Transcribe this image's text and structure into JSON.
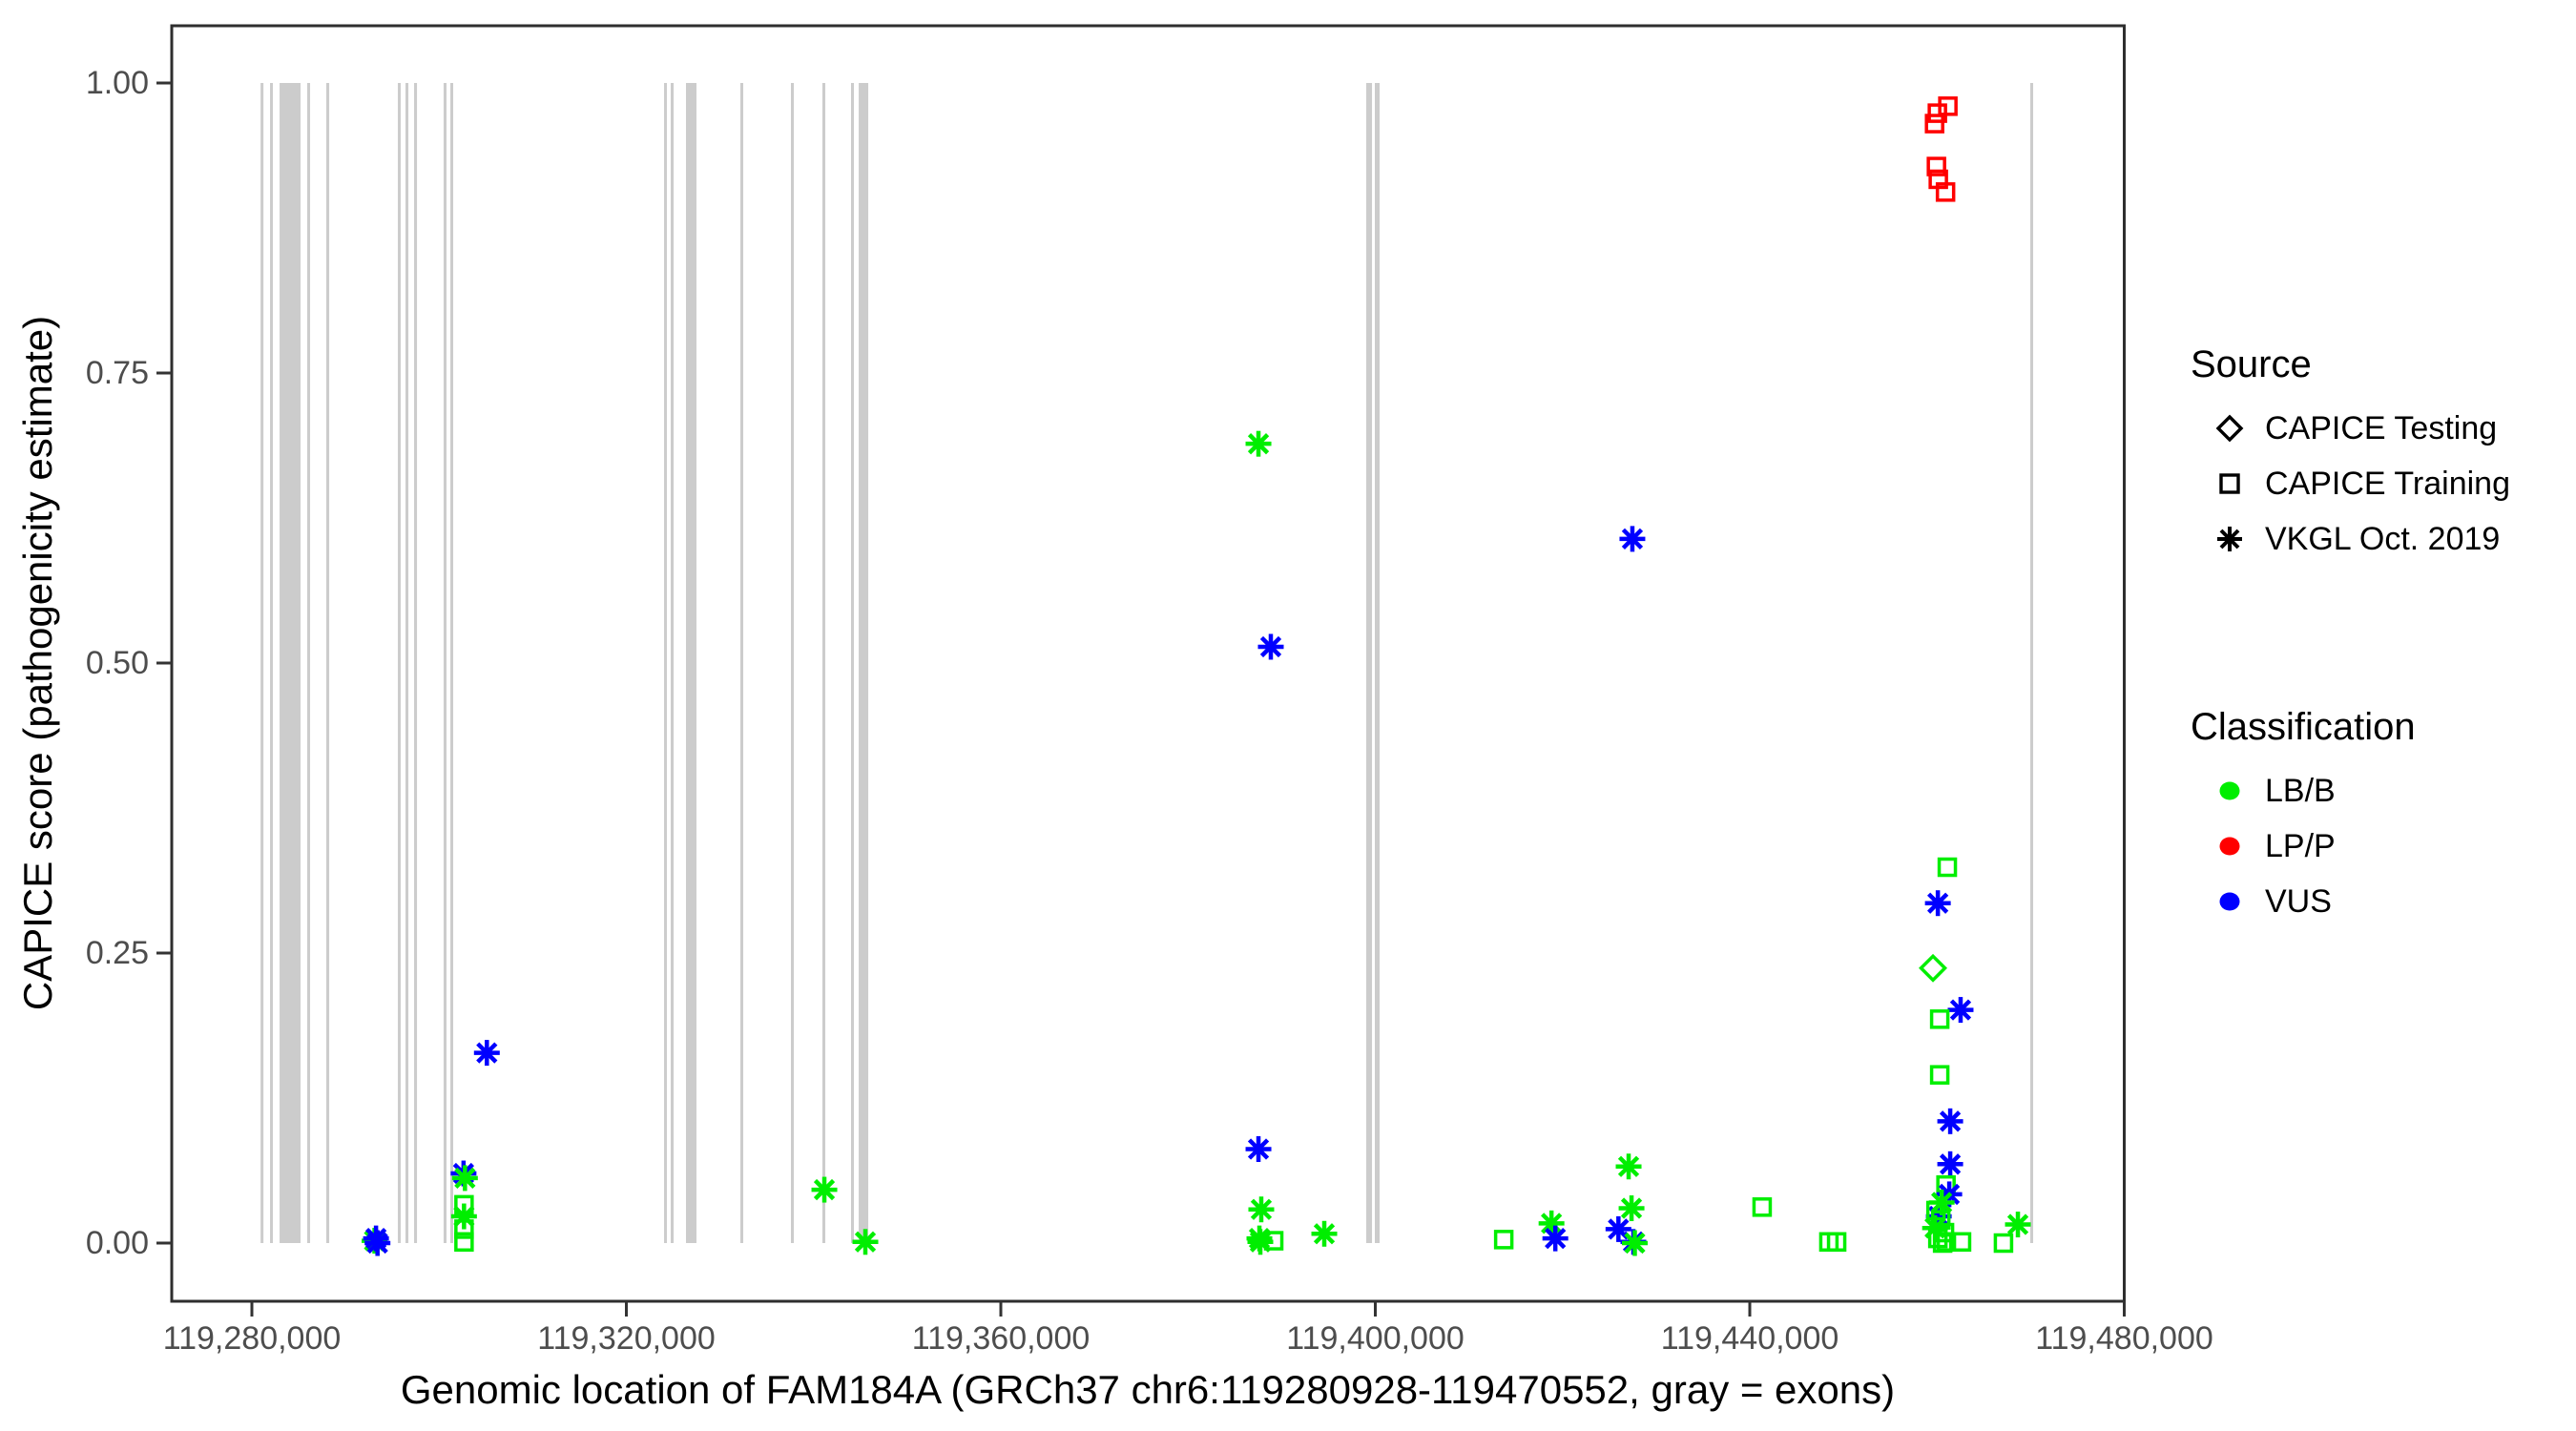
{
  "chart_data": {
    "type": "scatter",
    "title": "",
    "xlabel": "Genomic location of FAM184A (GRCh37 chr6:119280928-119470552, gray = exons)",
    "ylabel": "CAPICE score (pathogenicity estimate)",
    "grid": false,
    "xlim": [
      119271440,
      119480040
    ],
    "ylim": [
      -0.05,
      1.05
    ],
    "x_ticks": [
      {
        "bp": 119280000,
        "label": "119,280,000"
      },
      {
        "bp": 119320000,
        "label": "119,320,000"
      },
      {
        "bp": 119360000,
        "label": "119,360,000"
      },
      {
        "bp": 119400000,
        "label": "119,400,000"
      },
      {
        "bp": 119440000,
        "label": "119,440,000"
      },
      {
        "bp": 119480000,
        "label": "119,480,000"
      }
    ],
    "y_ticks": [
      {
        "v": 0.0,
        "label": "0.00"
      },
      {
        "v": 0.25,
        "label": "0.25"
      },
      {
        "v": 0.5,
        "label": "0.50"
      },
      {
        "v": 0.75,
        "label": "0.75"
      },
      {
        "v": 1.0,
        "label": "1.00"
      }
    ],
    "colors": {
      "LB/B": "#00ee00",
      "LP/P": "#ff0000",
      "VUS": "#0000ff",
      "exon": "#cccccc",
      "tick_text": "#4d4d4d",
      "axis": "#333333",
      "border": "#2e2e2e"
    },
    "legend": {
      "source": {
        "title": "Source",
        "items": [
          {
            "label": "CAPICE Testing",
            "shape": "diamond"
          },
          {
            "label": "CAPICE Training",
            "shape": "square"
          },
          {
            "label": "VKGL Oct. 2019",
            "shape": "asterisk"
          }
        ]
      },
      "classification": {
        "title": "Classification",
        "items": [
          {
            "label": "LB/B",
            "color": "#00ee00"
          },
          {
            "label": "LP/P",
            "color": "#ff0000"
          },
          {
            "label": "VUS",
            "color": "#0000ff"
          }
        ]
      }
    },
    "exons_bp": [
      [
        119280930,
        119281230
      ],
      [
        119281940,
        119282240
      ],
      [
        119282960,
        119285200
      ],
      [
        119285910,
        119286220
      ],
      [
        119287950,
        119288260
      ],
      [
        119295590,
        119295900
      ],
      [
        119296410,
        119296710
      ],
      [
        119297330,
        119297630
      ],
      [
        119300480,
        119300790
      ],
      [
        119301200,
        119301500
      ],
      [
        119324030,
        119324330
      ],
      [
        119324740,
        119325050
      ],
      [
        119326370,
        119327490
      ],
      [
        119332180,
        119332480
      ],
      [
        119337580,
        119337890
      ],
      [
        119340940,
        119341250
      ],
      [
        119344000,
        119344310
      ],
      [
        119344820,
        119345840
      ],
      [
        119399030,
        119399650
      ],
      [
        119399950,
        119400460
      ],
      [
        119469960,
        119470270
      ]
    ],
    "points": [
      {
        "bp": 119293100,
        "score": 0.002,
        "shape": "asterisk",
        "cls": "LB/B"
      },
      {
        "bp": 119293260,
        "score": 0.004,
        "shape": "asterisk",
        "cls": "VUS"
      },
      {
        "bp": 119293420,
        "score": 0.0,
        "shape": "asterisk",
        "cls": "VUS"
      },
      {
        "bp": 119302610,
        "score": 0.06,
        "shape": "asterisk",
        "cls": "VUS"
      },
      {
        "bp": 119302760,
        "score": 0.056,
        "shape": "asterisk",
        "cls": "LB/B"
      },
      {
        "bp": 119302660,
        "score": 0.033,
        "shape": "square",
        "cls": "LB/B"
      },
      {
        "bp": 119302660,
        "score": 0.023,
        "shape": "asterisk",
        "cls": "LB/B"
      },
      {
        "bp": 119302660,
        "score": 0.012,
        "shape": "square",
        "cls": "LB/B"
      },
      {
        "bp": 119302660,
        "score": 0.001,
        "shape": "square",
        "cls": "LB/B"
      },
      {
        "bp": 119305100,
        "score": 0.164,
        "shape": "asterisk",
        "cls": "VUS"
      },
      {
        "bp": 119341150,
        "score": 0.046,
        "shape": "asterisk",
        "cls": "LB/B"
      },
      {
        "bp": 119345530,
        "score": 0.001,
        "shape": "asterisk",
        "cls": "LB/B"
      },
      {
        "bp": 119387520,
        "score": 0.689,
        "shape": "asterisk",
        "cls": "LB/B"
      },
      {
        "bp": 119388840,
        "score": 0.514,
        "shape": "asterisk",
        "cls": "VUS"
      },
      {
        "bp": 119387520,
        "score": 0.081,
        "shape": "asterisk",
        "cls": "VUS"
      },
      {
        "bp": 119387820,
        "score": 0.029,
        "shape": "asterisk",
        "cls": "LB/B"
      },
      {
        "bp": 119387620,
        "score": 0.004,
        "shape": "asterisk",
        "cls": "LB/B"
      },
      {
        "bp": 119387720,
        "score": 0.001,
        "shape": "asterisk",
        "cls": "LB/B"
      },
      {
        "bp": 119389150,
        "score": 0.002,
        "shape": "square",
        "cls": "LB/B"
      },
      {
        "bp": 119394550,
        "score": 0.008,
        "shape": "asterisk",
        "cls": "LB/B"
      },
      {
        "bp": 119413720,
        "score": 0.003,
        "shape": "square",
        "cls": "LB/B"
      },
      {
        "bp": 119418820,
        "score": 0.017,
        "shape": "asterisk",
        "cls": "LB/B"
      },
      {
        "bp": 119419230,
        "score": 0.004,
        "shape": "asterisk",
        "cls": "VUS"
      },
      {
        "bp": 119427460,
        "score": 0.607,
        "shape": "asterisk",
        "cls": "VUS"
      },
      {
        "bp": 119427060,
        "score": 0.066,
        "shape": "asterisk",
        "cls": "LB/B"
      },
      {
        "bp": 119427370,
        "score": 0.03,
        "shape": "asterisk",
        "cls": "LB/B"
      },
      {
        "bp": 119425970,
        "score": 0.012,
        "shape": "asterisk",
        "cls": "VUS"
      },
      {
        "bp": 119427570,
        "score": 0.001,
        "shape": "asterisk",
        "cls": "VUS"
      },
      {
        "bp": 119427720,
        "score": 0.0,
        "shape": "asterisk",
        "cls": "LB/B"
      },
      {
        "bp": 119441320,
        "score": 0.031,
        "shape": "square",
        "cls": "LB/B"
      },
      {
        "bp": 119448450,
        "score": 0.001,
        "shape": "square",
        "cls": "LB/B"
      },
      {
        "bp": 119449280,
        "score": 0.001,
        "shape": "square",
        "cls": "LB/B"
      },
      {
        "bp": 119461160,
        "score": 0.98,
        "shape": "square",
        "cls": "LP/P"
      },
      {
        "bp": 119460040,
        "score": 0.974,
        "shape": "square",
        "cls": "LP/P"
      },
      {
        "bp": 119459740,
        "score": 0.965,
        "shape": "square",
        "cls": "LP/P"
      },
      {
        "bp": 119459940,
        "score": 0.928,
        "shape": "square",
        "cls": "LP/P"
      },
      {
        "bp": 119460140,
        "score": 0.917,
        "shape": "square",
        "cls": "LP/P"
      },
      {
        "bp": 119460910,
        "score": 0.906,
        "shape": "square",
        "cls": "LP/P"
      },
      {
        "bp": 119461100,
        "score": 0.324,
        "shape": "square",
        "cls": "LB/B"
      },
      {
        "bp": 119460090,
        "score": 0.293,
        "shape": "asterisk",
        "cls": "VUS"
      },
      {
        "bp": 119459570,
        "score": 0.237,
        "shape": "diamond",
        "cls": "LB/B"
      },
      {
        "bp": 119462520,
        "score": 0.201,
        "shape": "asterisk",
        "cls": "VUS"
      },
      {
        "bp": 119460290,
        "score": 0.193,
        "shape": "square",
        "cls": "LB/B"
      },
      {
        "bp": 119460290,
        "score": 0.145,
        "shape": "square",
        "cls": "LB/B"
      },
      {
        "bp": 119461410,
        "score": 0.105,
        "shape": "asterisk",
        "cls": "VUS"
      },
      {
        "bp": 119461410,
        "score": 0.068,
        "shape": "asterisk",
        "cls": "VUS"
      },
      {
        "bp": 119460960,
        "score": 0.05,
        "shape": "square",
        "cls": "LB/B"
      },
      {
        "bp": 119461310,
        "score": 0.042,
        "shape": "asterisk",
        "cls": "VUS"
      },
      {
        "bp": 119460190,
        "score": 0.023,
        "shape": "asterisk",
        "cls": "VUS"
      },
      {
        "bp": 119460500,
        "score": 0.035,
        "shape": "asterisk",
        "cls": "LB/B"
      },
      {
        "bp": 119459890,
        "score": 0.028,
        "shape": "square",
        "cls": "LB/B"
      },
      {
        "bp": 119460400,
        "score": 0.02,
        "shape": "square",
        "cls": "LB/B"
      },
      {
        "bp": 119459790,
        "score": 0.013,
        "shape": "asterisk",
        "cls": "LB/B"
      },
      {
        "bp": 119460800,
        "score": 0.009,
        "shape": "square",
        "cls": "LB/B"
      },
      {
        "bp": 119460090,
        "score": 0.004,
        "shape": "square",
        "cls": "LB/B"
      },
      {
        "bp": 119461000,
        "score": 0.001,
        "shape": "square",
        "cls": "LB/B"
      },
      {
        "bp": 119460600,
        "score": 0.0,
        "shape": "square",
        "cls": "LB/B"
      },
      {
        "bp": 119462620,
        "score": 0.001,
        "shape": "square",
        "cls": "LB/B"
      },
      {
        "bp": 119467100,
        "score": 0.0,
        "shape": "square",
        "cls": "LB/B"
      },
      {
        "bp": 119468640,
        "score": 0.016,
        "shape": "asterisk",
        "cls": "LB/B"
      }
    ]
  }
}
